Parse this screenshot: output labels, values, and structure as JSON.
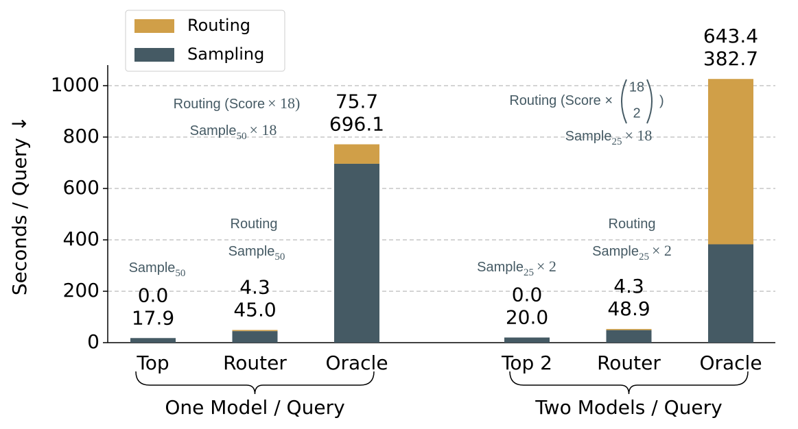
{
  "chart_data": {
    "type": "stacked-bar",
    "y_label": "Seconds / Query ↓",
    "categories": [
      "Top",
      "Router",
      "Oracle",
      "Top 2",
      "Router",
      "Oracle"
    ],
    "groups": [
      "One Model / Query",
      "Two Models / Query"
    ],
    "series": [
      {
        "name": "Sampling",
        "color": "#455a64",
        "values": [
          17.9,
          45.0,
          696.1,
          20.0,
          48.9,
          382.7
        ],
        "value_labels": [
          "17.9",
          "45.0",
          "696.1",
          "20.0",
          "48.9",
          "382.7"
        ]
      },
      {
        "name": "Routing",
        "color": "#d09f48",
        "values": [
          0.0,
          4.3,
          75.7,
          0.0,
          4.3,
          643.4
        ],
        "value_labels": [
          "0.0",
          "4.3",
          "75.7",
          "0.0",
          "4.3",
          "643.4"
        ]
      }
    ],
    "ylim": [
      0,
      1080
    ],
    "yticks": [
      0,
      200,
      400,
      600,
      800,
      1000
    ],
    "grid": true,
    "legend": "upper left",
    "annotations": [
      {
        "text": "Sample",
        "sub": "50"
      },
      {
        "text": "Routing"
      },
      {
        "text": "Sample",
        "sub": "50"
      },
      {
        "text": "Routing (Score",
        "suffix": "× 18)"
      },
      {
        "text": "Sample",
        "sub": "50",
        "suffix": "× 18"
      },
      {
        "text": "Sample",
        "sub": "25",
        "suffix": "× 2"
      },
      {
        "text": "Routing"
      },
      {
        "text": "Sample",
        "sub": "25",
        "suffix": "× 2"
      },
      {
        "text": "Routing (Score  ×",
        "binom_top": "18",
        "binom_bottom": "2",
        "suffix": ")"
      },
      {
        "text": "Sample",
        "sub": "25",
        "suffix": "× 18"
      }
    ]
  }
}
